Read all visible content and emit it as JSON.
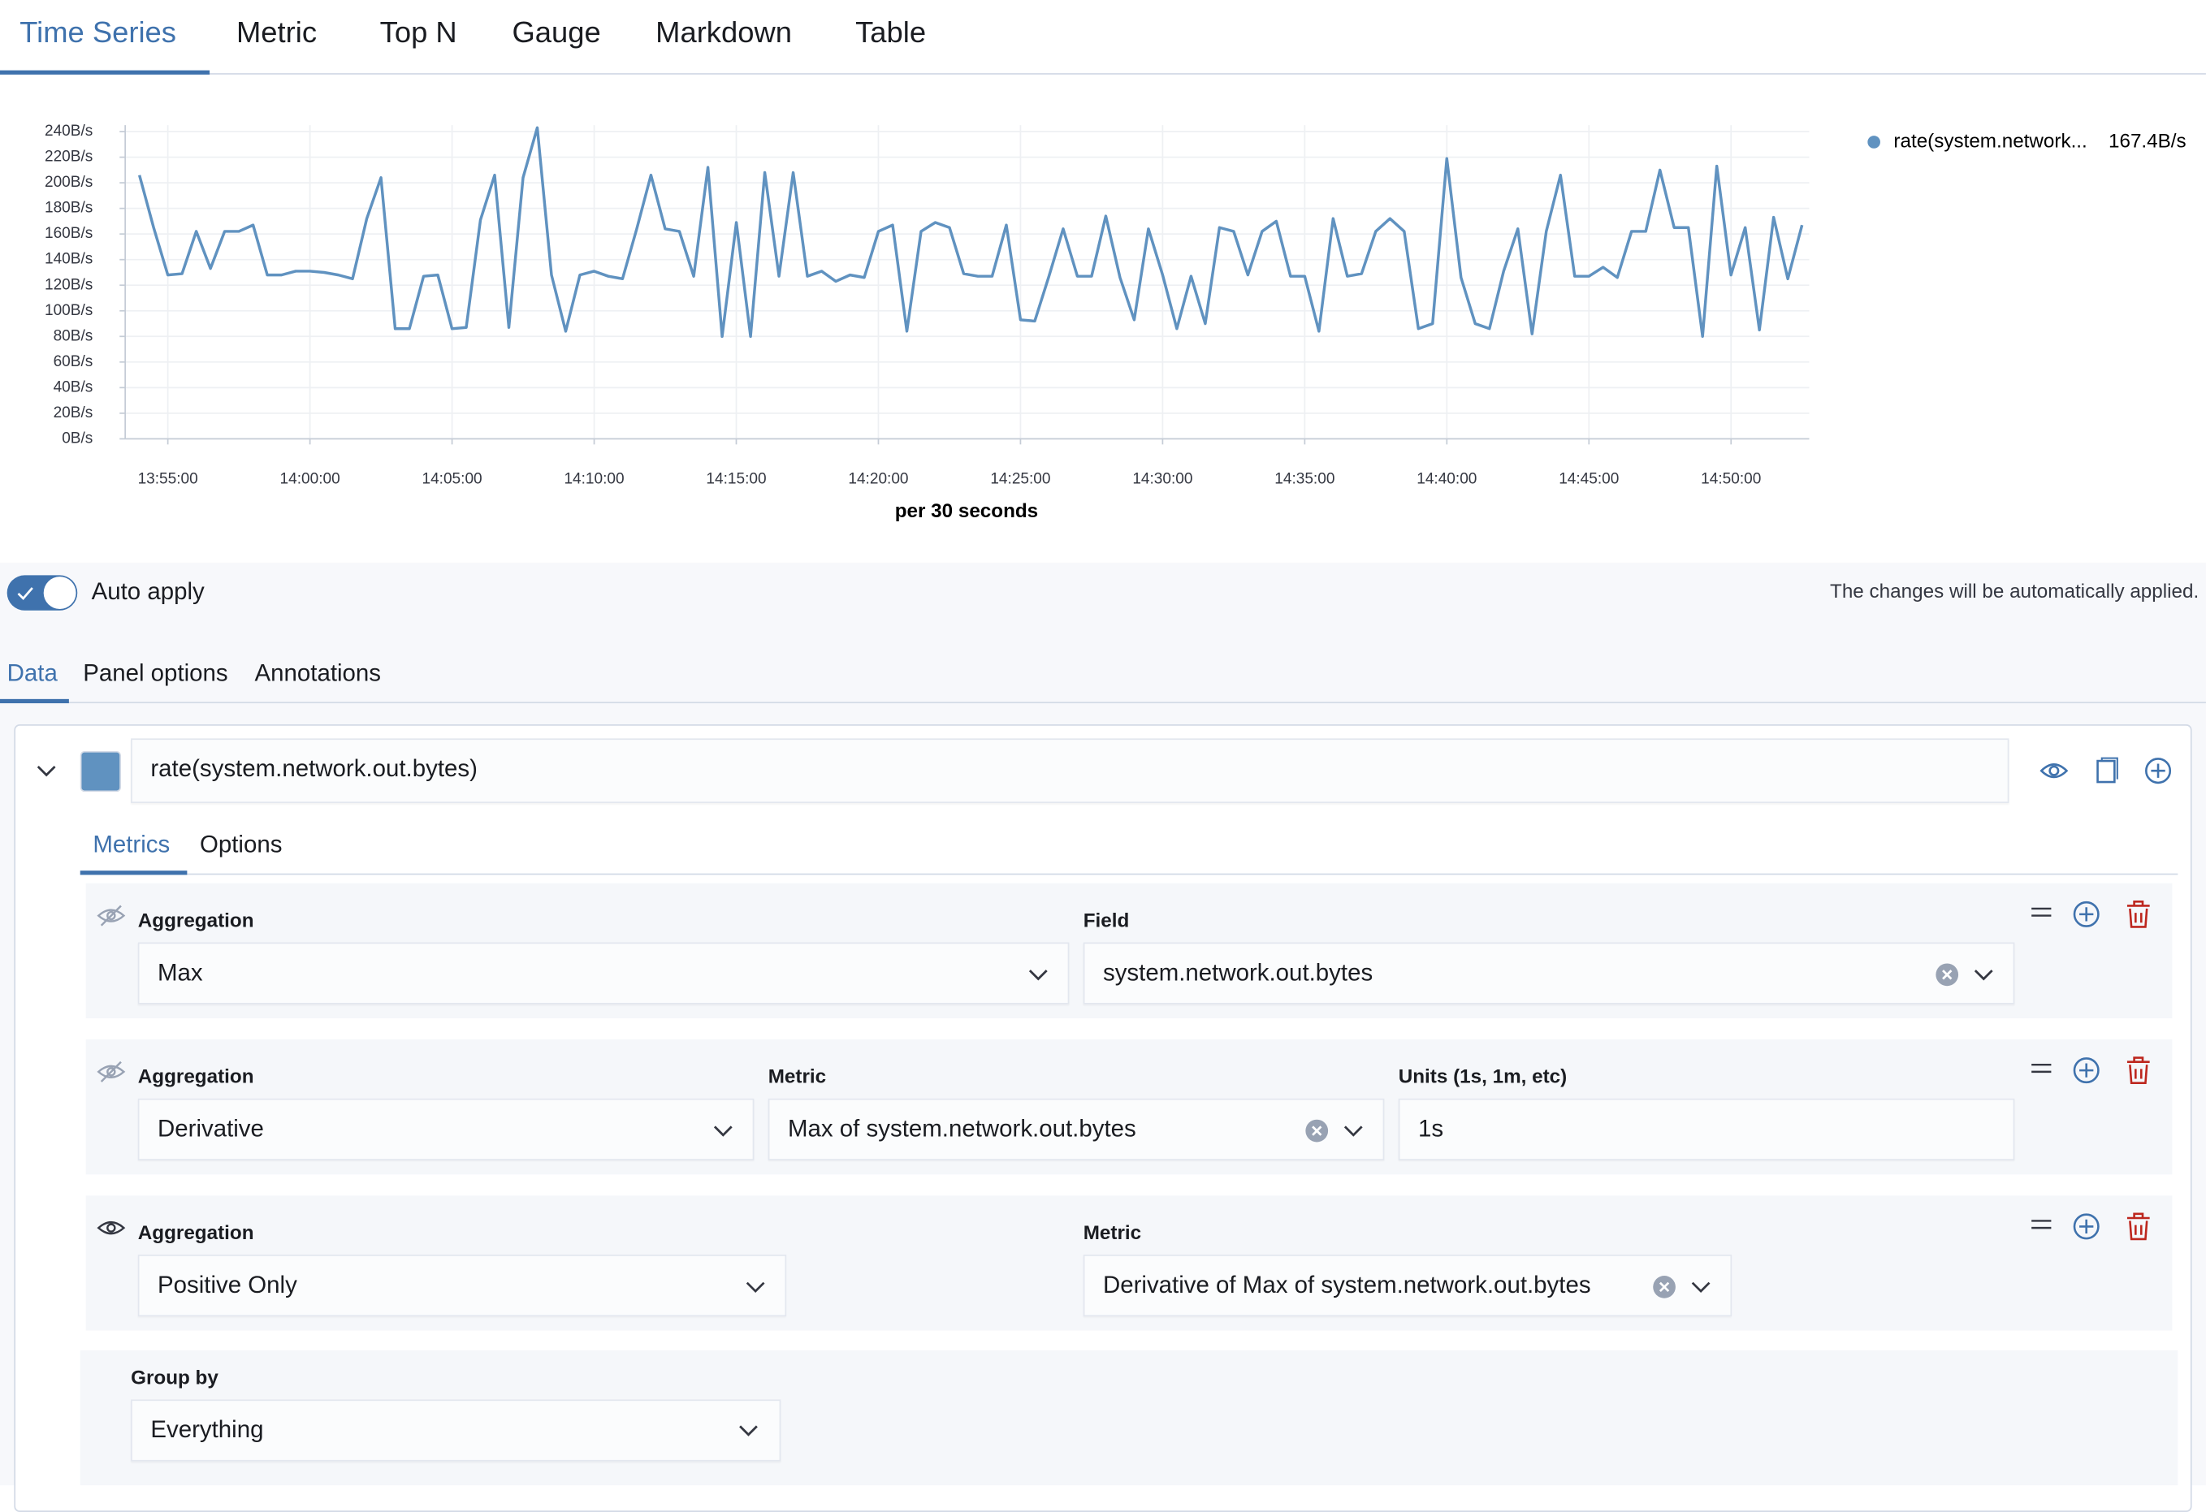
{
  "tabs": [
    "Time Series",
    "Metric",
    "Top N",
    "Gauge",
    "Markdown",
    "Table"
  ],
  "chart_data": {
    "type": "line",
    "x_label": "per 30 seconds",
    "x": [
      "13:54:00",
      "13:54:30",
      "13:55:00",
      "13:55:30",
      "13:56:00",
      "13:56:30",
      "13:57:00",
      "13:57:30",
      "13:58:00",
      "13:58:30",
      "13:59:00",
      "13:59:30",
      "14:00:00",
      "14:00:30",
      "14:01:00",
      "14:01:30",
      "14:02:00",
      "14:02:30",
      "14:03:00",
      "14:03:30",
      "14:04:00",
      "14:04:30",
      "14:05:00",
      "14:05:30",
      "14:06:00",
      "14:06:30",
      "14:07:00",
      "14:07:30",
      "14:08:00",
      "14:08:30",
      "14:09:00",
      "14:09:30",
      "14:10:00",
      "14:10:30",
      "14:11:00",
      "14:11:30",
      "14:12:00",
      "14:12:30",
      "14:13:00",
      "14:13:30",
      "14:14:00",
      "14:14:30",
      "14:15:00",
      "14:15:30",
      "14:16:00",
      "14:16:30",
      "14:17:00",
      "14:17:30",
      "14:18:00",
      "14:18:30",
      "14:19:00",
      "14:19:30",
      "14:20:00",
      "14:20:30",
      "14:21:00",
      "14:21:30",
      "14:22:00",
      "14:22:30",
      "14:23:00",
      "14:23:30",
      "14:24:00",
      "14:24:30",
      "14:25:00",
      "14:25:30",
      "14:26:00",
      "14:26:30",
      "14:27:00",
      "14:27:30",
      "14:28:00",
      "14:28:30",
      "14:29:00",
      "14:29:30",
      "14:30:00",
      "14:30:30",
      "14:31:00",
      "14:31:30",
      "14:32:00",
      "14:32:30",
      "14:33:00",
      "14:33:30",
      "14:34:00",
      "14:34:30",
      "14:35:00",
      "14:35:30",
      "14:36:00",
      "14:36:30",
      "14:37:00",
      "14:37:30",
      "14:38:00",
      "14:38:30",
      "14:39:00",
      "14:39:30",
      "14:40:00",
      "14:40:30",
      "14:41:00",
      "14:41:30",
      "14:42:00",
      "14:42:30",
      "14:43:00",
      "14:43:30",
      "14:44:00",
      "14:44:30",
      "14:45:00",
      "14:45:30",
      "14:46:00",
      "14:46:30",
      "14:47:00",
      "14:47:30",
      "14:48:00",
      "14:48:30",
      "14:49:00",
      "14:49:30",
      "14:50:00",
      "14:50:30",
      "14:51:00",
      "14:51:30",
      "14:52:00",
      "14:52:30"
    ],
    "series": [
      {
        "name": "rate(system.network...",
        "color": "#6092c0",
        "values": [
          206,
          165,
          128,
          129,
          162,
          133,
          162,
          162,
          167,
          128,
          128,
          131,
          131,
          130,
          128,
          125,
          172,
          204,
          86,
          86,
          127,
          128,
          86,
          87,
          171,
          206,
          87,
          204,
          243,
          128,
          84,
          128,
          131,
          127,
          125,
          164,
          206,
          164,
          162,
          127,
          212,
          80,
          169,
          80,
          208,
          127,
          208,
          127,
          131,
          123,
          128,
          126,
          162,
          167,
          84,
          162,
          169,
          165,
          129,
          127,
          127,
          167,
          93,
          92,
          127,
          164,
          127,
          127,
          174,
          126,
          93,
          164,
          128,
          86,
          127,
          90,
          165,
          162,
          128,
          162,
          170,
          127,
          127,
          84,
          172,
          127,
          129,
          162,
          172,
          162,
          86,
          90,
          219,
          126,
          90,
          86,
          131,
          164,
          82,
          162,
          206,
          127,
          127,
          134,
          126,
          162,
          162,
          210,
          165,
          165,
          80,
          213,
          128,
          165,
          85,
          173,
          125,
          167
        ]
      }
    ],
    "legend_value": "167.4B/s",
    "xlim": [
      "13:53:30",
      "14:52:45"
    ],
    "xticks": [
      "13:55:00",
      "14:00:00",
      "14:05:00",
      "14:10:00",
      "14:15:00",
      "14:20:00",
      "14:25:00",
      "14:30:00",
      "14:35:00",
      "14:40:00",
      "14:45:00",
      "14:50:00"
    ],
    "ylim": [
      0,
      245
    ],
    "yticks": [
      {
        "value": 0,
        "label": "0B/s"
      },
      {
        "value": 20,
        "label": "20B/s"
      },
      {
        "value": 40,
        "label": "40B/s"
      },
      {
        "value": 60,
        "label": "60B/s"
      },
      {
        "value": 80,
        "label": "80B/s"
      },
      {
        "value": 100,
        "label": "100B/s"
      },
      {
        "value": 120,
        "label": "120B/s"
      },
      {
        "value": 140,
        "label": "140B/s"
      },
      {
        "value": 160,
        "label": "160B/s"
      },
      {
        "value": 180,
        "label": "180B/s"
      },
      {
        "value": 200,
        "label": "200B/s"
      },
      {
        "value": 220,
        "label": "220B/s"
      },
      {
        "value": 240,
        "label": "240B/s"
      }
    ],
    "grid": true
  },
  "auto_apply": {
    "label": "Auto apply",
    "note": "The changes will be automatically applied."
  },
  "panel_tabs": [
    "Data",
    "Panel options",
    "Annotations"
  ],
  "series_label": "rate(system.network.out.bytes)",
  "series_tabs": [
    "Metrics",
    "Options"
  ],
  "metrics": [
    {
      "fields": [
        {
          "label": "Aggregation",
          "value": "Max"
        },
        {
          "label": "Field",
          "value": "system.network.out.bytes"
        }
      ]
    },
    {
      "fields": [
        {
          "label": "Aggregation",
          "value": "Derivative"
        },
        {
          "label": "Metric",
          "value": "Max of system.network.out.bytes"
        },
        {
          "label": "Units (1s, 1m, etc)",
          "value": "1s"
        }
      ]
    },
    {
      "fields": [
        {
          "label": "Aggregation",
          "value": "Positive Only"
        },
        {
          "label": "Metric",
          "value": "Derivative of Max of system.network.out.bytes"
        }
      ]
    }
  ],
  "group_by": {
    "label": "Group by",
    "value": "Everything"
  }
}
